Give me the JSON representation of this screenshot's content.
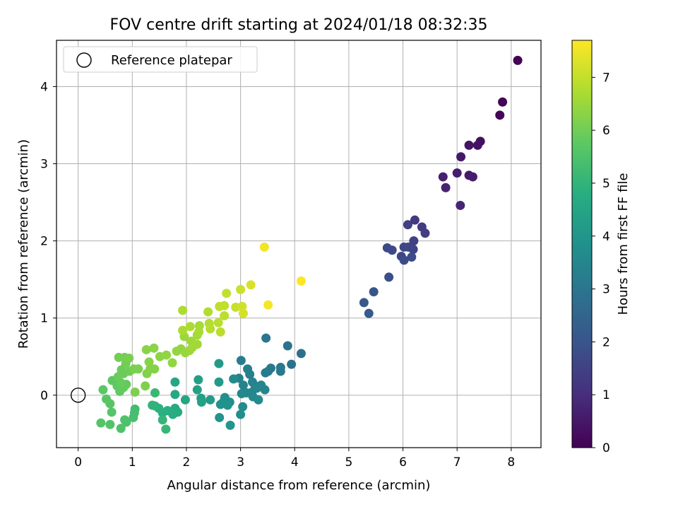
{
  "chart_data": {
    "type": "scatter",
    "title": "FOV centre drift starting at 2024/01/18 08:32:35",
    "xlabel": "Angular distance from reference (arcmin)",
    "ylabel": "Rotation from reference (arcmin)",
    "xlim": [
      -0.4,
      8.55
    ],
    "ylim": [
      -0.68,
      4.6
    ],
    "xticks": [
      "0",
      "1",
      "2",
      "3",
      "4",
      "5",
      "6",
      "7",
      "8"
    ],
    "yticks": [
      "0",
      "1",
      "2",
      "3",
      "4"
    ],
    "grid": true,
    "legend": {
      "placement": "top-left",
      "entries": [
        "Reference platepar"
      ]
    },
    "reference_point": {
      "x": 0,
      "y": 0
    },
    "colorbar": {
      "label": "Hours from first FF file",
      "range": [
        0,
        7.7
      ],
      "ticks": [
        "0",
        "1",
        "2",
        "3",
        "4",
        "5",
        "6",
        "7"
      ],
      "colormap": "viridis"
    },
    "points": [
      [
        8.12,
        4.34,
        0.0
      ],
      [
        7.84,
        3.8,
        0.05
      ],
      [
        7.79,
        3.63,
        0.1
      ],
      [
        7.43,
        3.29,
        0.3
      ],
      [
        7.38,
        3.24,
        0.35
      ],
      [
        7.22,
        3.24,
        0.4
      ],
      [
        7.07,
        3.09,
        0.5
      ],
      [
        7.22,
        2.85,
        0.55
      ],
      [
        7.29,
        2.83,
        0.58
      ],
      [
        7.0,
        2.88,
        0.62
      ],
      [
        6.74,
        2.83,
        0.7
      ],
      [
        6.79,
        2.69,
        0.75
      ],
      [
        7.06,
        2.46,
        0.8
      ],
      [
        6.22,
        2.27,
        1.3
      ],
      [
        6.35,
        2.18,
        1.35
      ],
      [
        6.41,
        2.1,
        1.4
      ],
      [
        6.09,
        2.21,
        1.45
      ],
      [
        6.2,
        2.0,
        1.5
      ],
      [
        6.19,
        1.89,
        1.55
      ],
      [
        6.1,
        1.92,
        1.6
      ],
      [
        6.02,
        1.92,
        1.62
      ],
      [
        5.97,
        1.8,
        1.65
      ],
      [
        5.71,
        1.91,
        1.7
      ],
      [
        5.8,
        1.88,
        1.72
      ],
      [
        6.02,
        1.75,
        1.75
      ],
      [
        6.16,
        1.79,
        1.78
      ],
      [
        5.74,
        1.53,
        1.85
      ],
      [
        5.46,
        1.34,
        2.05
      ],
      [
        5.28,
        1.2,
        2.1
      ],
      [
        5.37,
        1.06,
        2.15
      ],
      [
        4.12,
        0.54,
        2.8
      ],
      [
        3.87,
        0.64,
        2.85
      ],
      [
        3.94,
        0.4,
        2.9
      ],
      [
        3.47,
        0.74,
        3.0
      ],
      [
        3.74,
        0.36,
        3.05
      ],
      [
        3.74,
        0.31,
        3.08
      ],
      [
        3.56,
        0.35,
        3.1
      ],
      [
        3.51,
        0.31,
        3.12
      ],
      [
        3.46,
        0.29,
        3.15
      ],
      [
        3.01,
        0.45,
        3.2
      ],
      [
        3.13,
        0.34,
        3.25
      ],
      [
        3.17,
        0.27,
        3.3
      ],
      [
        2.97,
        0.22,
        3.35
      ],
      [
        3.22,
        0.17,
        3.38
      ],
      [
        3.05,
        0.13,
        3.4
      ],
      [
        3.27,
        0.12,
        3.42
      ],
      [
        3.38,
        0.13,
        3.45
      ],
      [
        3.45,
        0.07,
        3.48
      ],
      [
        3.3,
        0.09,
        3.5
      ],
      [
        3.21,
        0.04,
        3.52
      ],
      [
        3.11,
        0.03,
        3.55
      ],
      [
        3.02,
        0.02,
        3.58
      ],
      [
        3.23,
        -0.02,
        3.6
      ],
      [
        3.33,
        -0.06,
        3.62
      ],
      [
        2.87,
        0.21,
        3.65
      ],
      [
        3.04,
        -0.15,
        3.7
      ],
      [
        3.0,
        -0.25,
        3.75
      ],
      [
        2.8,
        -0.09,
        3.8
      ],
      [
        2.71,
        -0.03,
        3.82
      ],
      [
        2.69,
        -0.08,
        3.85
      ],
      [
        2.63,
        -0.12,
        3.88
      ],
      [
        2.76,
        -0.13,
        3.9
      ],
      [
        2.61,
        -0.29,
        3.95
      ],
      [
        2.81,
        -0.39,
        4.0
      ],
      [
        2.6,
        0.17,
        4.1
      ],
      [
        2.6,
        0.41,
        4.15
      ],
      [
        2.44,
        -0.06,
        4.2
      ],
      [
        2.27,
        -0.04,
        4.25
      ],
      [
        2.22,
        0.2,
        4.3
      ],
      [
        2.2,
        0.07,
        4.35
      ],
      [
        2.28,
        -0.09,
        4.4
      ],
      [
        1.98,
        -0.06,
        4.5
      ],
      [
        1.79,
        0.17,
        4.55
      ],
      [
        1.79,
        0.01,
        4.6
      ],
      [
        1.79,
        -0.17,
        4.65
      ],
      [
        1.84,
        -0.22,
        4.7
      ],
      [
        1.75,
        -0.25,
        4.75
      ],
      [
        1.65,
        -0.2,
        4.8
      ],
      [
        1.56,
        -0.23,
        4.85
      ],
      [
        1.49,
        -0.17,
        4.9
      ],
      [
        1.42,
        -0.14,
        4.95
      ],
      [
        1.37,
        -0.13,
        5.0
      ],
      [
        1.56,
        -0.32,
        5.05
      ],
      [
        1.62,
        -0.44,
        5.1
      ],
      [
        1.42,
        0.03,
        5.15
      ],
      [
        1.05,
        -0.18,
        5.3
      ],
      [
        1.04,
        -0.23,
        5.35
      ],
      [
        1.02,
        -0.29,
        5.4
      ],
      [
        0.89,
        -0.35,
        5.45
      ],
      [
        0.86,
        -0.32,
        5.48
      ],
      [
        0.79,
        -0.43,
        5.5
      ],
      [
        0.59,
        -0.38,
        5.55
      ],
      [
        0.42,
        -0.36,
        5.6
      ],
      [
        0.62,
        -0.22,
        5.62
      ],
      [
        0.59,
        -0.11,
        5.65
      ],
      [
        0.52,
        -0.05,
        5.68
      ],
      [
        0.46,
        0.07,
        5.7
      ],
      [
        0.63,
        0.19,
        5.75
      ],
      [
        0.72,
        0.12,
        5.78
      ],
      [
        0.77,
        0.05,
        5.8
      ],
      [
        0.84,
        0.1,
        5.82
      ],
      [
        0.89,
        0.14,
        5.85
      ],
      [
        0.79,
        0.16,
        5.88
      ],
      [
        0.74,
        0.24,
        5.9
      ],
      [
        0.84,
        0.28,
        5.92
      ],
      [
        0.8,
        0.33,
        5.95
      ],
      [
        0.95,
        0.31,
        5.98
      ],
      [
        0.88,
        0.41,
        6.0
      ],
      [
        0.75,
        0.49,
        6.02
      ],
      [
        0.86,
        0.49,
        6.05
      ],
      [
        0.94,
        0.48,
        6.08
      ],
      [
        1.03,
        0.34,
        6.1
      ],
      [
        1.11,
        0.34,
        6.12
      ],
      [
        1.05,
        0.04,
        6.15
      ],
      [
        1.24,
        0.12,
        6.18
      ],
      [
        1.27,
        0.28,
        6.2
      ],
      [
        1.33,
        0.34,
        6.22
      ],
      [
        1.41,
        0.34,
        6.25
      ],
      [
        1.31,
        0.43,
        6.28
      ],
      [
        1.26,
        0.59,
        6.3
      ],
      [
        1.4,
        0.61,
        6.32
      ],
      [
        1.51,
        0.5,
        6.35
      ],
      [
        1.63,
        0.52,
        6.38
      ],
      [
        1.74,
        0.42,
        6.4
      ],
      [
        1.82,
        0.57,
        6.42
      ],
      [
        1.9,
        0.6,
        6.45
      ],
      [
        1.98,
        0.55,
        6.48
      ],
      [
        2.06,
        0.58,
        6.5
      ],
      [
        1.96,
        0.76,
        6.52
      ],
      [
        2.09,
        0.7,
        6.55
      ],
      [
        2.11,
        0.62,
        6.58
      ],
      [
        2.2,
        0.66,
        6.6
      ],
      [
        2.2,
        0.78,
        6.62
      ],
      [
        2.24,
        0.9,
        6.65
      ],
      [
        2.23,
        0.82,
        6.68
      ],
      [
        1.93,
        0.84,
        6.7
      ],
      [
        2.07,
        0.89,
        6.72
      ],
      [
        1.93,
        1.1,
        6.75
      ],
      [
        2.4,
        1.08,
        6.8
      ],
      [
        2.42,
        0.93,
        6.82
      ],
      [
        2.44,
        0.86,
        6.85
      ],
      [
        2.59,
        0.94,
        6.88
      ],
      [
        2.63,
        0.82,
        6.9
      ],
      [
        2.7,
        1.03,
        6.92
      ],
      [
        2.61,
        1.15,
        6.95
      ],
      [
        2.7,
        1.16,
        6.98
      ],
      [
        2.74,
        1.32,
        7.0
      ],
      [
        2.91,
        1.14,
        7.05
      ],
      [
        3.0,
        1.37,
        7.1
      ],
      [
        3.03,
        1.15,
        7.15
      ],
      [
        3.05,
        1.06,
        7.2
      ],
      [
        3.19,
        1.43,
        7.25
      ],
      [
        3.44,
        1.92,
        7.55
      ],
      [
        3.51,
        1.17,
        7.6
      ],
      [
        4.12,
        1.48,
        7.7
      ]
    ]
  }
}
